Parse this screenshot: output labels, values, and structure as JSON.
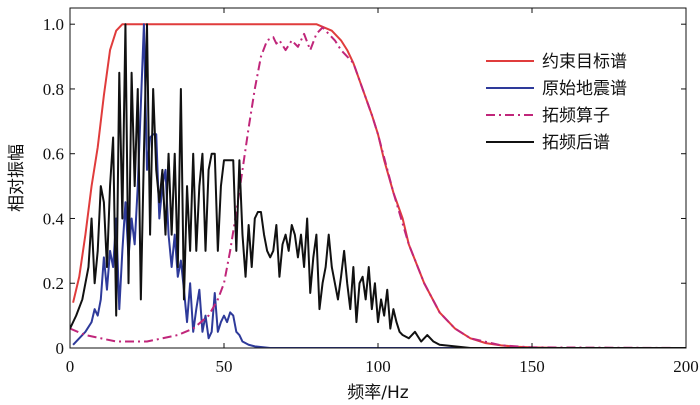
{
  "chart_data": {
    "type": "line",
    "xlabel": "频率/Hz",
    "ylabel": "相对振幅",
    "xlim": [
      0,
      200
    ],
    "ylim": [
      0,
      1.05
    ],
    "x_ticks": [
      0,
      50,
      100,
      150,
      200
    ],
    "y_ticks": [
      0,
      0.2,
      0.4,
      0.6,
      0.8,
      1.0
    ],
    "x_tick_labels": [
      "0",
      "50",
      "100",
      "150",
      "200"
    ],
    "y_tick_labels": [
      "0",
      "0.2",
      "0.4",
      "0.6",
      "0.8",
      "1.0"
    ],
    "grid": false,
    "legend_position": "top-right",
    "series": [
      {
        "name": "约束目标谱",
        "color": "#e03c3c",
        "style": "solid",
        "x": [
          1,
          3,
          5,
          7,
          9,
          11,
          13,
          15,
          17,
          19,
          22,
          25,
          30,
          40,
          50,
          60,
          70,
          80,
          85,
          88,
          90,
          92,
          95,
          98,
          100,
          102,
          105,
          108,
          110,
          115,
          120,
          125,
          130,
          135,
          140,
          145,
          150,
          160,
          200
        ],
        "y": [
          0.14,
          0.22,
          0.35,
          0.5,
          0.62,
          0.78,
          0.92,
          0.98,
          1.0,
          1.0,
          1.0,
          1.0,
          1.0,
          1.0,
          1.0,
          1.0,
          1.0,
          1.0,
          0.98,
          0.95,
          0.92,
          0.88,
          0.8,
          0.72,
          0.66,
          0.58,
          0.48,
          0.4,
          0.32,
          0.2,
          0.11,
          0.06,
          0.03,
          0.015,
          0.008,
          0.004,
          0.002,
          0.0,
          0.0
        ]
      },
      {
        "name": "原始地震谱",
        "color": "#2e3a9a",
        "style": "solid",
        "x": [
          1,
          3,
          5,
          7,
          8,
          9,
          10,
          11,
          12,
          13,
          14,
          15,
          16,
          17,
          18,
          19,
          20,
          21,
          22,
          23,
          24,
          25,
          26,
          27,
          28,
          29,
          30,
          31,
          32,
          33,
          34,
          35,
          36,
          37,
          38,
          39,
          40,
          41,
          42,
          43,
          44,
          45,
          46,
          47,
          48,
          49,
          50,
          51,
          52,
          53,
          54,
          55,
          56,
          58,
          60,
          65,
          70,
          80,
          90,
          100,
          200
        ],
        "y": [
          0.01,
          0.03,
          0.05,
          0.08,
          0.12,
          0.1,
          0.15,
          0.28,
          0.18,
          0.3,
          0.25,
          0.4,
          0.12,
          0.3,
          0.45,
          0.28,
          0.4,
          0.32,
          0.5,
          0.75,
          1.0,
          0.55,
          0.65,
          0.66,
          0.66,
          0.4,
          0.5,
          0.55,
          0.35,
          0.25,
          0.35,
          0.22,
          0.27,
          0.18,
          0.08,
          0.2,
          0.05,
          0.12,
          0.18,
          0.05,
          0.1,
          0.03,
          0.05,
          0.17,
          0.05,
          0.08,
          0.1,
          0.08,
          0.11,
          0.1,
          0.05,
          0.04,
          0.02,
          0.01,
          0.005,
          0.0,
          0.0,
          0.0,
          0.0,
          0.0,
          0.0
        ]
      },
      {
        "name": "拓频算子",
        "color": "#c0267a",
        "style": "dashdot",
        "x": [
          0,
          5,
          10,
          15,
          20,
          25,
          30,
          35,
          40,
          45,
          48,
          50,
          52,
          54,
          56,
          58,
          60,
          62,
          64,
          66,
          67,
          68,
          70,
          72,
          74,
          76,
          78,
          80,
          82,
          84,
          86,
          88,
          90,
          92,
          95,
          98,
          100,
          105,
          110,
          115,
          120,
          125,
          130,
          140,
          150,
          200
        ],
        "y": [
          0.06,
          0.04,
          0.03,
          0.02,
          0.02,
          0.02,
          0.03,
          0.04,
          0.06,
          0.1,
          0.15,
          0.2,
          0.3,
          0.42,
          0.55,
          0.68,
          0.8,
          0.9,
          0.95,
          0.96,
          0.94,
          0.95,
          0.92,
          0.95,
          0.93,
          0.97,
          0.92,
          0.97,
          0.99,
          0.97,
          0.95,
          0.92,
          0.9,
          0.88,
          0.8,
          0.72,
          0.66,
          0.48,
          0.32,
          0.2,
          0.11,
          0.06,
          0.03,
          0.008,
          0.002,
          0.0
        ]
      },
      {
        "name": "拓频后谱",
        "color": "#111111",
        "style": "solid",
        "x": [
          0,
          2,
          4,
          6,
          7,
          8,
          9,
          10,
          11,
          12,
          13,
          14,
          15,
          16,
          17,
          18,
          19,
          20,
          21,
          22,
          23,
          24,
          25,
          26,
          27,
          28,
          29,
          30,
          31,
          32,
          33,
          34,
          35,
          36,
          37,
          38,
          39,
          40,
          41,
          42,
          43,
          44,
          45,
          46,
          47,
          48,
          49,
          50,
          51,
          52,
          53,
          54,
          55,
          56,
          57,
          58,
          59,
          60,
          61,
          62,
          63,
          64,
          65,
          66,
          67,
          68,
          69,
          70,
          71,
          72,
          73,
          74,
          75,
          76,
          77,
          78,
          79,
          80,
          81,
          82,
          83,
          84,
          85,
          86,
          87,
          88,
          89,
          90,
          91,
          92,
          93,
          94,
          95,
          96,
          97,
          98,
          99,
          100,
          101,
          102,
          103,
          104,
          105,
          106,
          107,
          108,
          110,
          112,
          114,
          116,
          118,
          120,
          125,
          130,
          140,
          150,
          200
        ],
        "y": [
          0.06,
          0.1,
          0.15,
          0.25,
          0.4,
          0.2,
          0.3,
          0.5,
          0.45,
          0.25,
          0.5,
          0.65,
          0.1,
          0.85,
          0.4,
          1.0,
          0.2,
          0.85,
          0.5,
          0.8,
          0.15,
          0.6,
          1.0,
          0.35,
          0.8,
          0.55,
          0.45,
          0.55,
          0.35,
          0.6,
          0.35,
          0.6,
          0.25,
          0.8,
          0.15,
          0.5,
          0.3,
          0.6,
          0.3,
          0.5,
          0.6,
          0.3,
          0.55,
          0.6,
          0.6,
          0.3,
          0.5,
          0.58,
          0.58,
          0.58,
          0.58,
          0.3,
          0.58,
          0.35,
          0.22,
          0.38,
          0.25,
          0.4,
          0.42,
          0.42,
          0.35,
          0.3,
          0.28,
          0.3,
          0.38,
          0.22,
          0.32,
          0.35,
          0.3,
          0.38,
          0.35,
          0.28,
          0.35,
          0.25,
          0.4,
          0.17,
          0.28,
          0.35,
          0.12,
          0.2,
          0.25,
          0.35,
          0.25,
          0.2,
          0.15,
          0.22,
          0.3,
          0.2,
          0.12,
          0.25,
          0.08,
          0.2,
          0.22,
          0.15,
          0.25,
          0.12,
          0.2,
          0.08,
          0.15,
          0.1,
          0.18,
          0.06,
          0.12,
          0.08,
          0.05,
          0.04,
          0.03,
          0.05,
          0.02,
          0.04,
          0.02,
          0.01,
          0.005,
          0.0,
          0.0,
          0.0,
          0.0
        ]
      }
    ]
  }
}
